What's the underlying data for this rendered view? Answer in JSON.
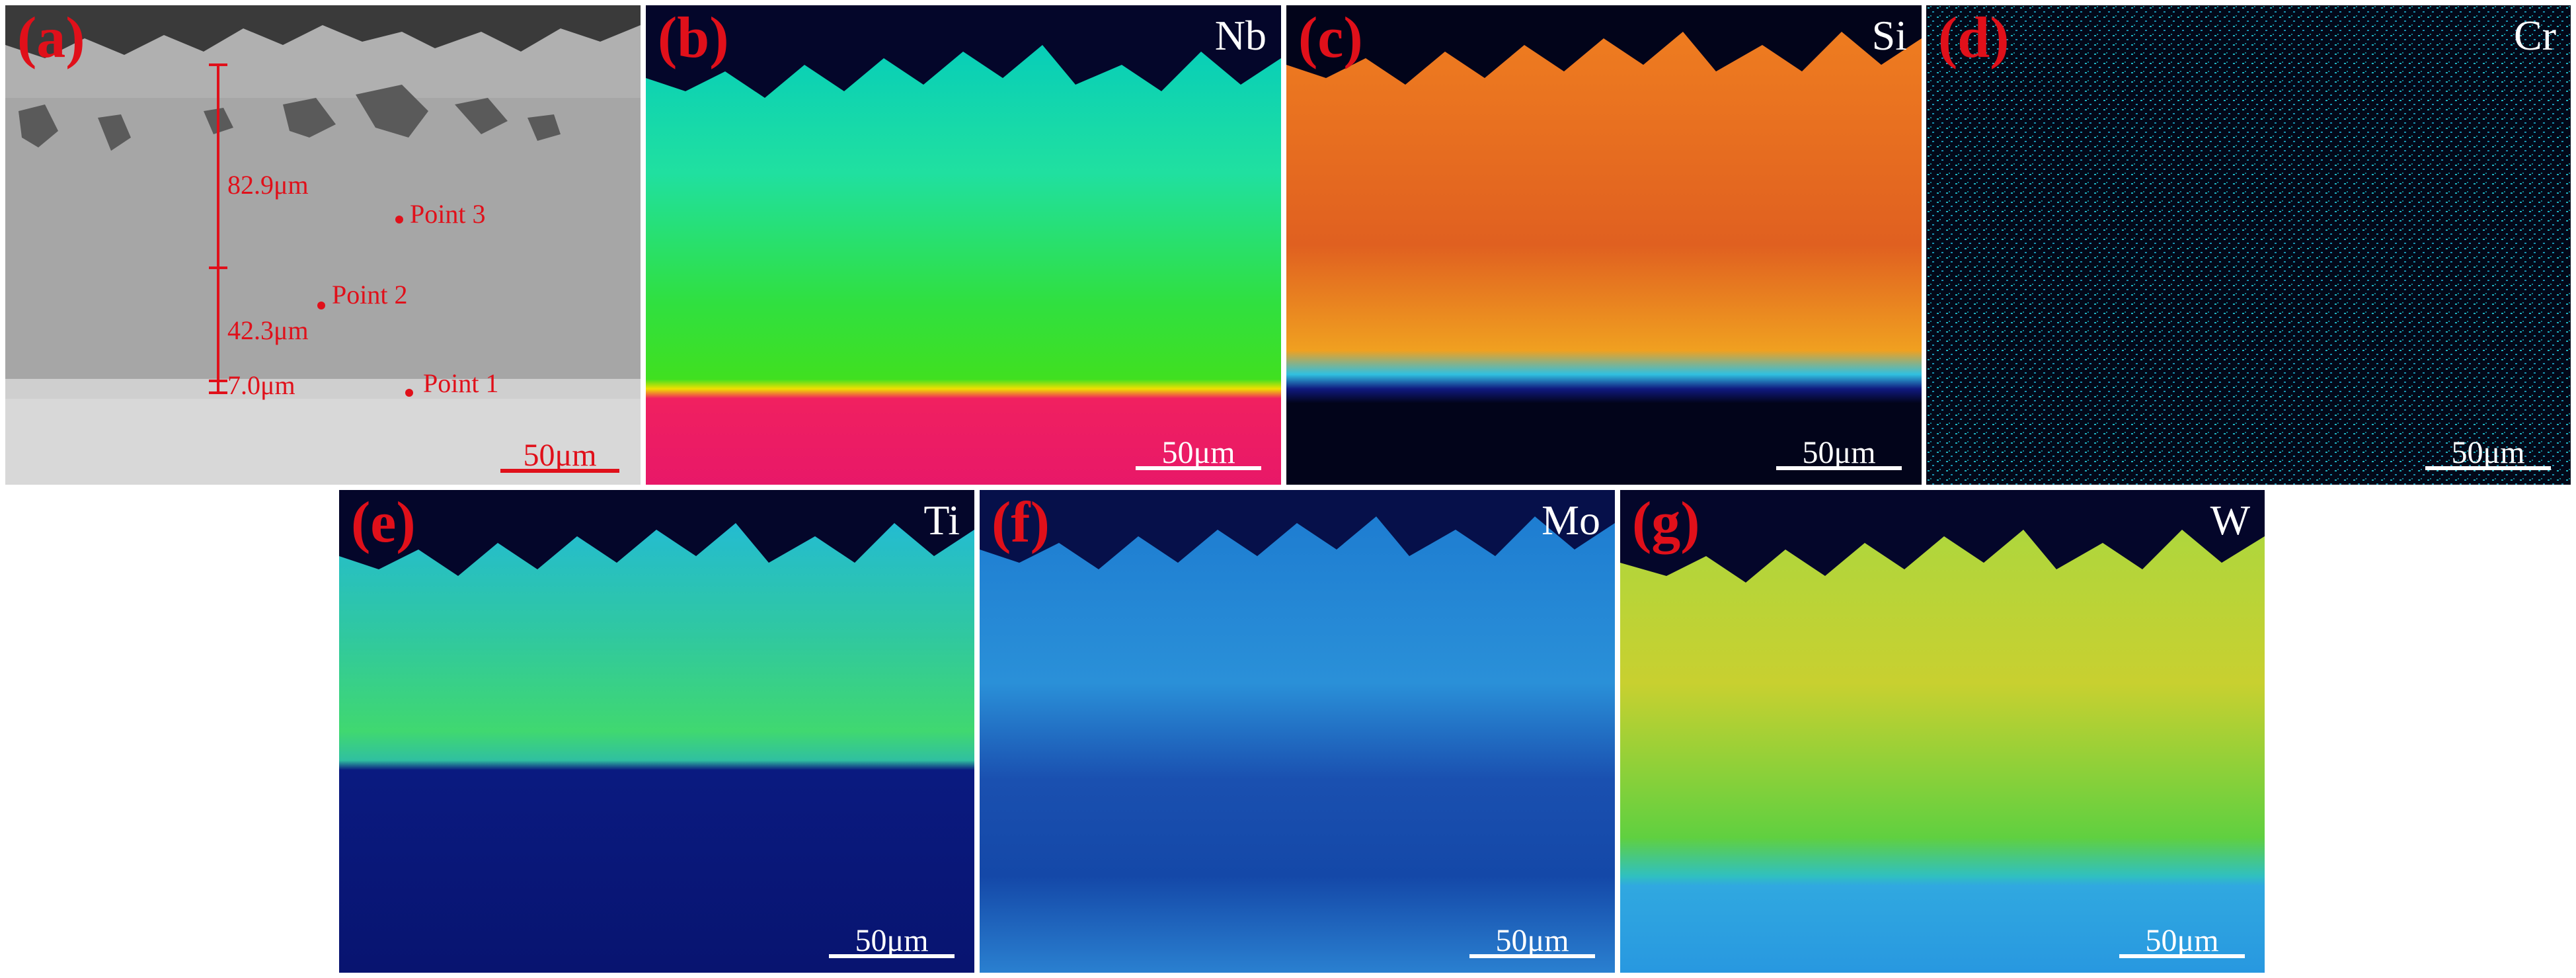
{
  "panels": {
    "a": {
      "label": "(a)",
      "element": "",
      "annotations": {
        "t1": "82.9μm",
        "t2": "42.3μm",
        "t3": "7.0μm"
      },
      "points": {
        "p1": "Point 1",
        "p2": "Point 2",
        "p3": "Point 3"
      },
      "scale": "50μm"
    },
    "b": {
      "label": "(b)",
      "element": "Nb",
      "scale": "50μm"
    },
    "c": {
      "label": "(c)",
      "element": "Si",
      "scale": "50μm"
    },
    "d": {
      "label": "(d)",
      "element": "Cr",
      "scale": "50μm"
    },
    "e": {
      "label": "(e)",
      "element": "Ti",
      "scale": "50μm"
    },
    "f": {
      "label": "(f)",
      "element": "Mo",
      "scale": "50μm"
    },
    "g": {
      "label": "(g)",
      "element": "W",
      "scale": "50μm"
    }
  },
  "colors": {
    "label_red": "#e0101a",
    "text_white": "#ffffff"
  }
}
